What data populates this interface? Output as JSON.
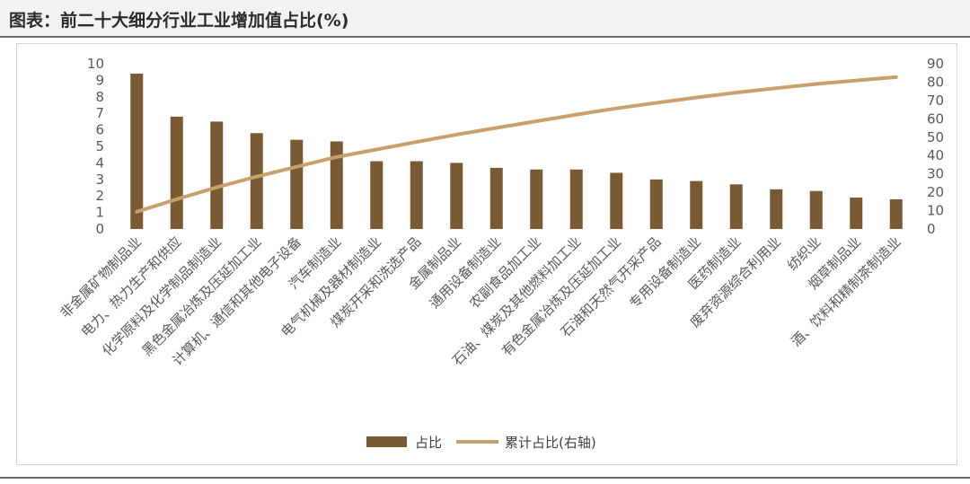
{
  "title": "图表：前二十大细分行业工业增加值占比(%)",
  "colors": {
    "bar": "#7a5a35",
    "line": "#c6a06d"
  },
  "legend": {
    "bar_label": "占比",
    "line_label": "累计占比(右轴)"
  },
  "chart_data": {
    "type": "bar",
    "categories": [
      "非金属矿物制品业",
      "电力、热力生产和供应",
      "化学原料及化学制品制造业",
      "黑色金属冶炼及压延加工业",
      "计算机、通信和其他电子设备",
      "汽车制造业",
      "电气机械及器材制造业",
      "煤炭开采和洗选产品",
      "金属制品业",
      "通用设备制造业",
      "农副食品加工业",
      "石油、煤炭及其他燃料加工业",
      "有色金属冶炼及压延加工业",
      "石油和天然气开采产品",
      "专用设备制造业",
      "医药制造业",
      "废弃资源综合利用业",
      "纺织业",
      "烟草制品业",
      "酒、饮料和精制茶制造业"
    ],
    "series": [
      {
        "name": "占比",
        "type": "bar",
        "axis": "left",
        "values": [
          9.4,
          6.8,
          6.5,
          5.8,
          5.4,
          5.3,
          4.1,
          4.1,
          4.0,
          3.7,
          3.6,
          3.6,
          3.4,
          3.0,
          2.9,
          2.7,
          2.4,
          2.3,
          1.9,
          1.8
        ]
      },
      {
        "name": "累计占比(右轴)",
        "type": "line",
        "axis": "right",
        "values": [
          9.4,
          16.2,
          22.7,
          28.5,
          33.9,
          39.2,
          43.3,
          47.4,
          51.4,
          55.1,
          58.7,
          62.3,
          65.7,
          68.7,
          71.6,
          74.3,
          76.7,
          79.0,
          80.9,
          82.7
        ]
      }
    ],
    "y_left": {
      "min": 0,
      "max": 10,
      "ticks": [
        "0",
        "1",
        "2",
        "3",
        "4",
        "5",
        "6",
        "7",
        "8",
        "9",
        "10"
      ]
    },
    "y_right": {
      "min": 0,
      "max": 90,
      "ticks": [
        "0",
        "10",
        "20",
        "30",
        "40",
        "50",
        "60",
        "70",
        "80",
        "90"
      ]
    },
    "grid": false,
    "legend_position": "bottom"
  }
}
